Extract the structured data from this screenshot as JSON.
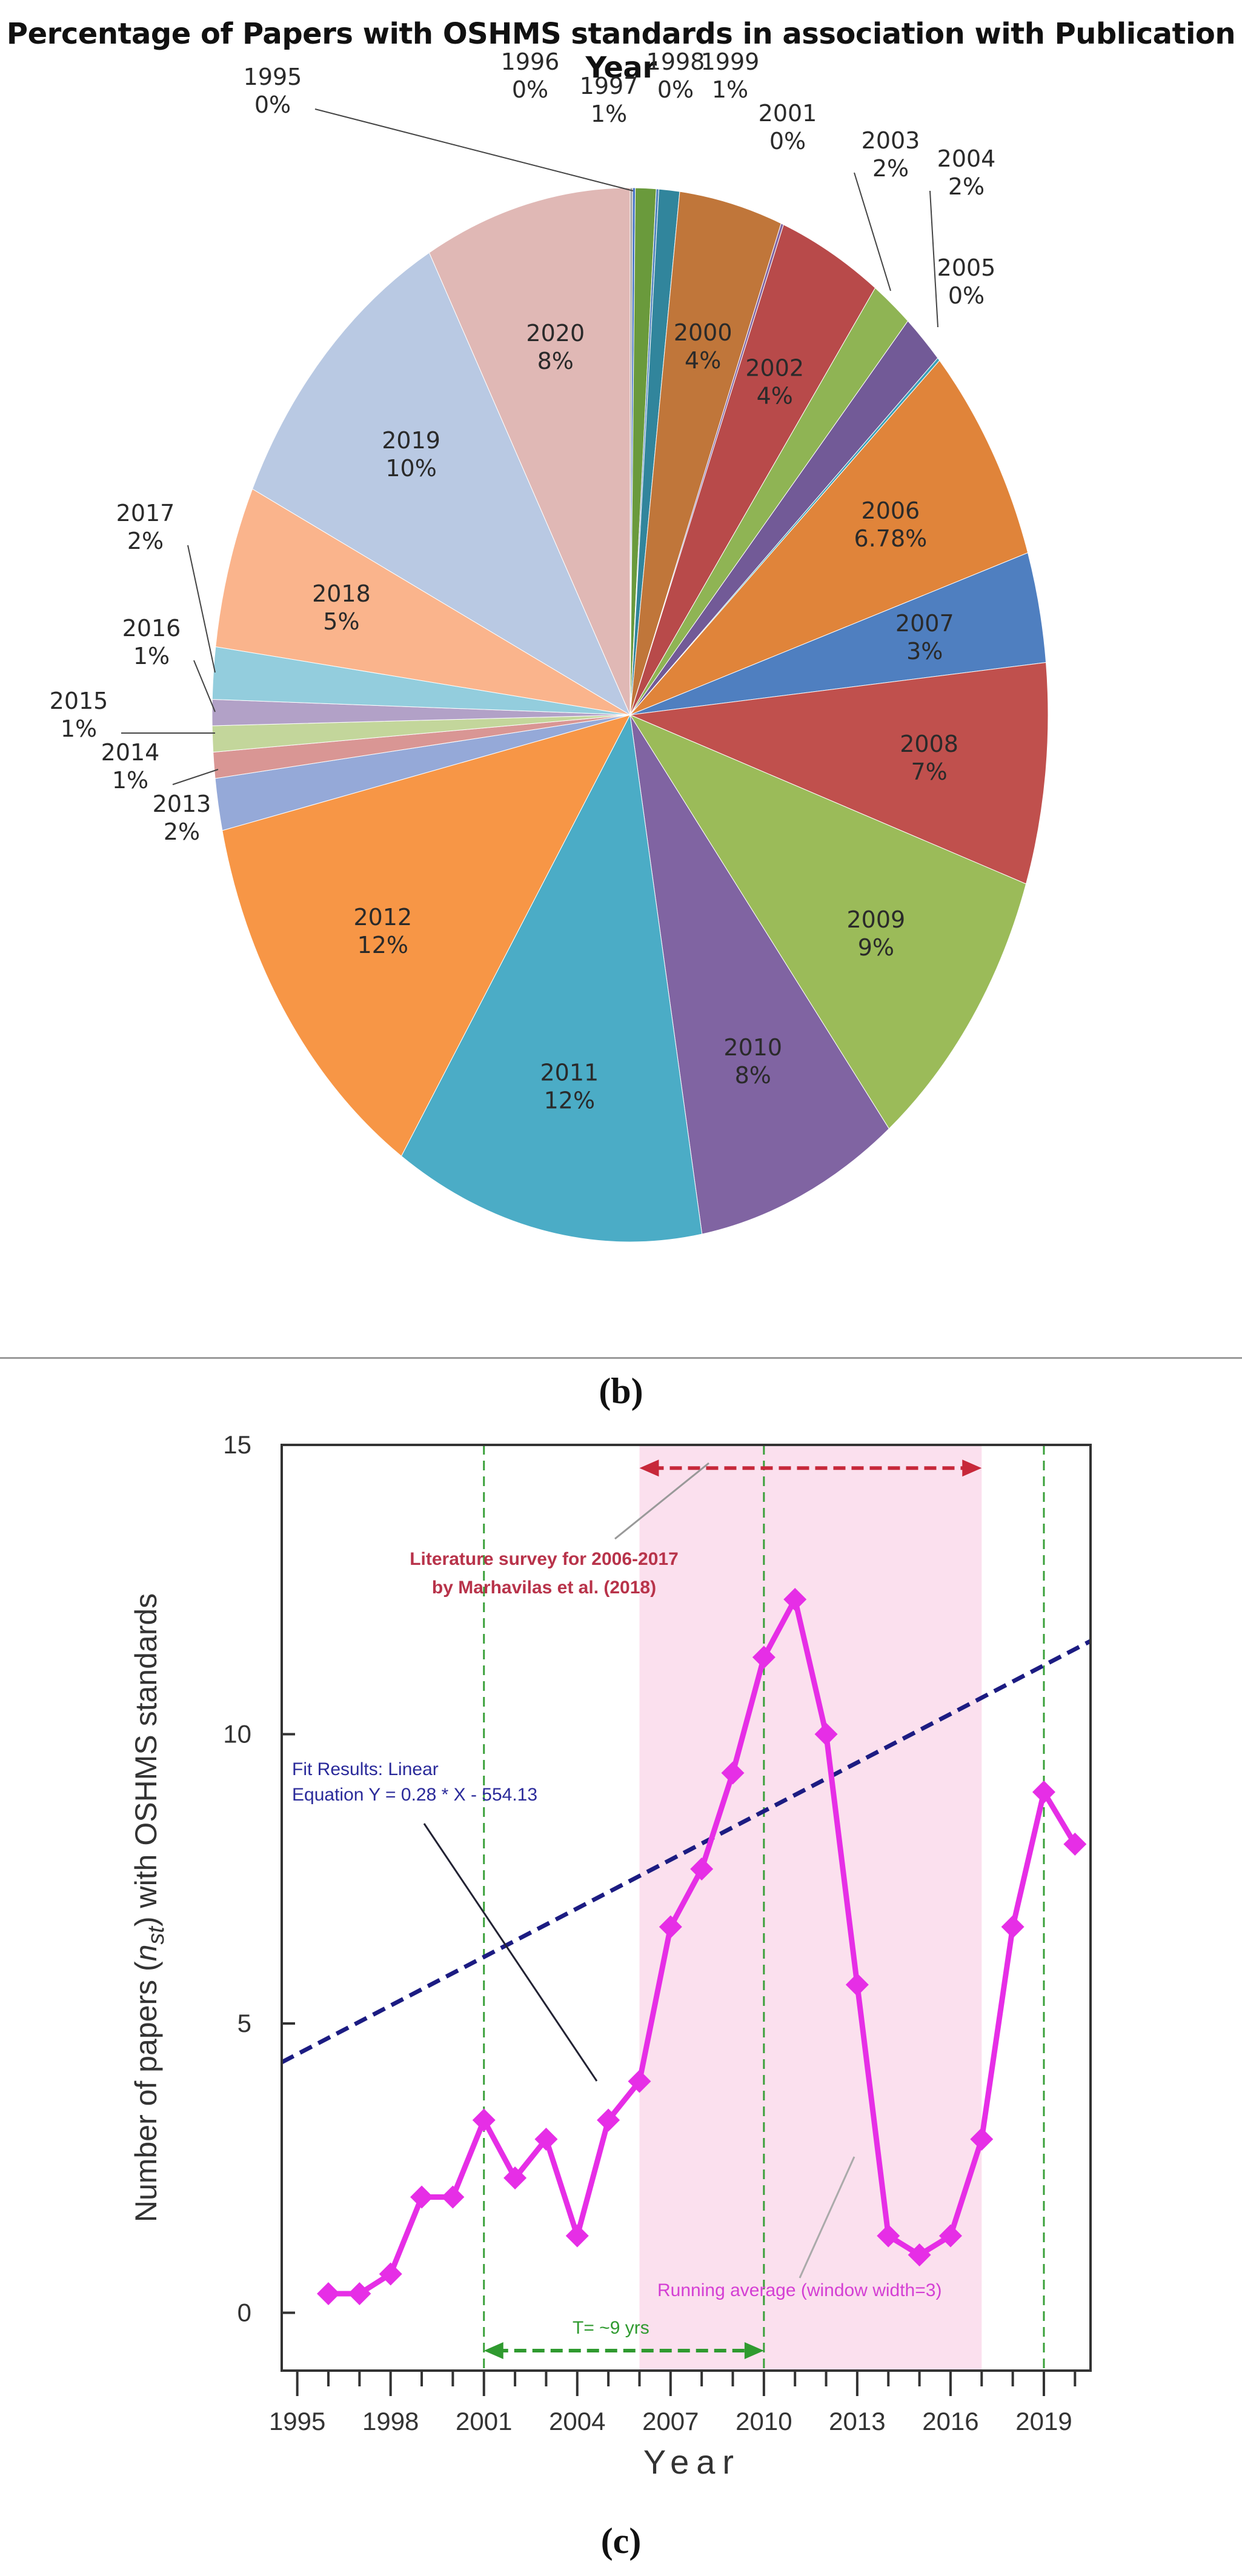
{
  "panels": {
    "b": "(b)",
    "c": "(c)"
  },
  "chart_data": [
    {
      "type": "pie",
      "title": "Percentage of Papers with OSHMS standards  in association with Publication Year",
      "slices": [
        {
          "year": "1995",
          "pct": "0%",
          "value": 0.1,
          "color": "#a5a5a5"
        },
        {
          "year": "1996",
          "pct": "0%",
          "value": 0.1,
          "color": "#4472c4"
        },
        {
          "year": "1997",
          "pct": "1%",
          "value": 0.8,
          "color": "#6a9a3c"
        },
        {
          "year": "1998",
          "pct": "0%",
          "value": 0.1,
          "color": "#4f81bd"
        },
        {
          "year": "1999",
          "pct": "1%",
          "value": 0.8,
          "color": "#31859c"
        },
        {
          "year": "2000",
          "pct": "4%",
          "value": 4.0,
          "color": "#c0763a"
        },
        {
          "year": "2001",
          "pct": "0%",
          "value": 0.1,
          "color": "#8064a2"
        },
        {
          "year": "2002",
          "pct": "4%",
          "value": 4.0,
          "color": "#b84a4a"
        },
        {
          "year": "2003",
          "pct": "2%",
          "value": 1.6,
          "color": "#8fb454"
        },
        {
          "year": "2004",
          "pct": "2%",
          "value": 1.6,
          "color": "#725a97"
        },
        {
          "year": "2005",
          "pct": "0%",
          "value": 0.1,
          "color": "#3aa0b8"
        },
        {
          "year": "2006",
          "pct": "6.78%",
          "value": 6.78,
          "color": "#e0843a"
        },
        {
          "year": "2007",
          "pct": "3%",
          "value": 3.4,
          "color": "#4f7fc0"
        },
        {
          "year": "2008",
          "pct": "7%",
          "value": 6.8,
          "color": "#c0504d"
        },
        {
          "year": "2009",
          "pct": "9%",
          "value": 9.2,
          "color": "#9bbb59"
        },
        {
          "year": "2010",
          "pct": "8%",
          "value": 7.9,
          "color": "#8064a2"
        },
        {
          "year": "2011",
          "pct": "12%",
          "value": 12.0,
          "color": "#4bacc6"
        },
        {
          "year": "2012",
          "pct": "12%",
          "value": 12.3,
          "color": "#f79646"
        },
        {
          "year": "2013",
          "pct": "2%",
          "value": 1.6,
          "color": "#95a9d8"
        },
        {
          "year": "2014",
          "pct": "1%",
          "value": 0.8,
          "color": "#d99694"
        },
        {
          "year": "2015",
          "pct": "1%",
          "value": 0.8,
          "color": "#c3d69b"
        },
        {
          "year": "2016",
          "pct": "1%",
          "value": 0.8,
          "color": "#b2a1c7"
        },
        {
          "year": "2017",
          "pct": "2%",
          "value": 1.6,
          "color": "#93cddd"
        },
        {
          "year": "2018",
          "pct": "5%",
          "value": 5.0,
          "color": "#fab48c"
        },
        {
          "year": "2019",
          "pct": "10%",
          "value": 10.0,
          "color": "#b9c9e3"
        },
        {
          "year": "2020",
          "pct": "8%",
          "value": 8.0,
          "color": "#e0b8b5"
        }
      ]
    },
    {
      "type": "line",
      "xlabel": "Year",
      "ylabel_parts": [
        "Number  of  papers (",
        "n",
        "st",
        ") with OSHMS standards"
      ],
      "xlim": [
        1994.5,
        2020.5
      ],
      "ylim": [
        -1,
        15
      ],
      "xticks": [
        1995,
        1998,
        2001,
        2004,
        2007,
        2010,
        2013,
        2016,
        2019
      ],
      "yticks": [
        0,
        5,
        10,
        15
      ],
      "series": [
        {
          "name": "Running average (window width=3)",
          "color": "#e62ee6",
          "x": [
            1996,
            1997,
            1998,
            1999,
            2000,
            2001,
            2002,
            2003,
            2004,
            2005,
            2006,
            2007,
            2008,
            2009,
            2010,
            2011,
            2012,
            2013,
            2014,
            2015,
            2016,
            2017,
            2018,
            2019,
            2020
          ],
          "y": [
            0.33,
            0.33,
            0.67,
            2.0,
            2.0,
            3.33,
            2.33,
            3.0,
            1.33,
            3.33,
            4.0,
            6.67,
            7.67,
            9.33,
            11.33,
            12.33,
            10.0,
            5.67,
            1.33,
            1.0,
            1.33,
            3.0,
            6.67,
            9.0,
            8.1
          ]
        }
      ],
      "fit": {
        "slope": 0.28,
        "intercept": -554.13,
        "x_range": [
          1994.5,
          2020.5
        ],
        "color": "#1c1c82"
      },
      "shaded_region": {
        "x": [
          2006,
          2017
        ],
        "color": "#fbe0ee"
      },
      "vlines": [
        2001,
        2010,
        2019
      ],
      "period_arrow": {
        "x": [
          2001,
          2010
        ],
        "y": -0.7,
        "label": "T= ~9 yrs"
      },
      "survey_arrow": {
        "x": [
          2006,
          2017
        ],
        "y": 14.6
      },
      "annotations": {
        "survey_line1": "Literature survey for 2006-2017",
        "survey_line2": "by Marhavilas et al. (2018)",
        "fit_line1": "Fit Results: Linear",
        "fit_line2": "Equation Y = 0.28 * X - 554.13",
        "running": "Running average (window width=3)"
      }
    }
  ]
}
